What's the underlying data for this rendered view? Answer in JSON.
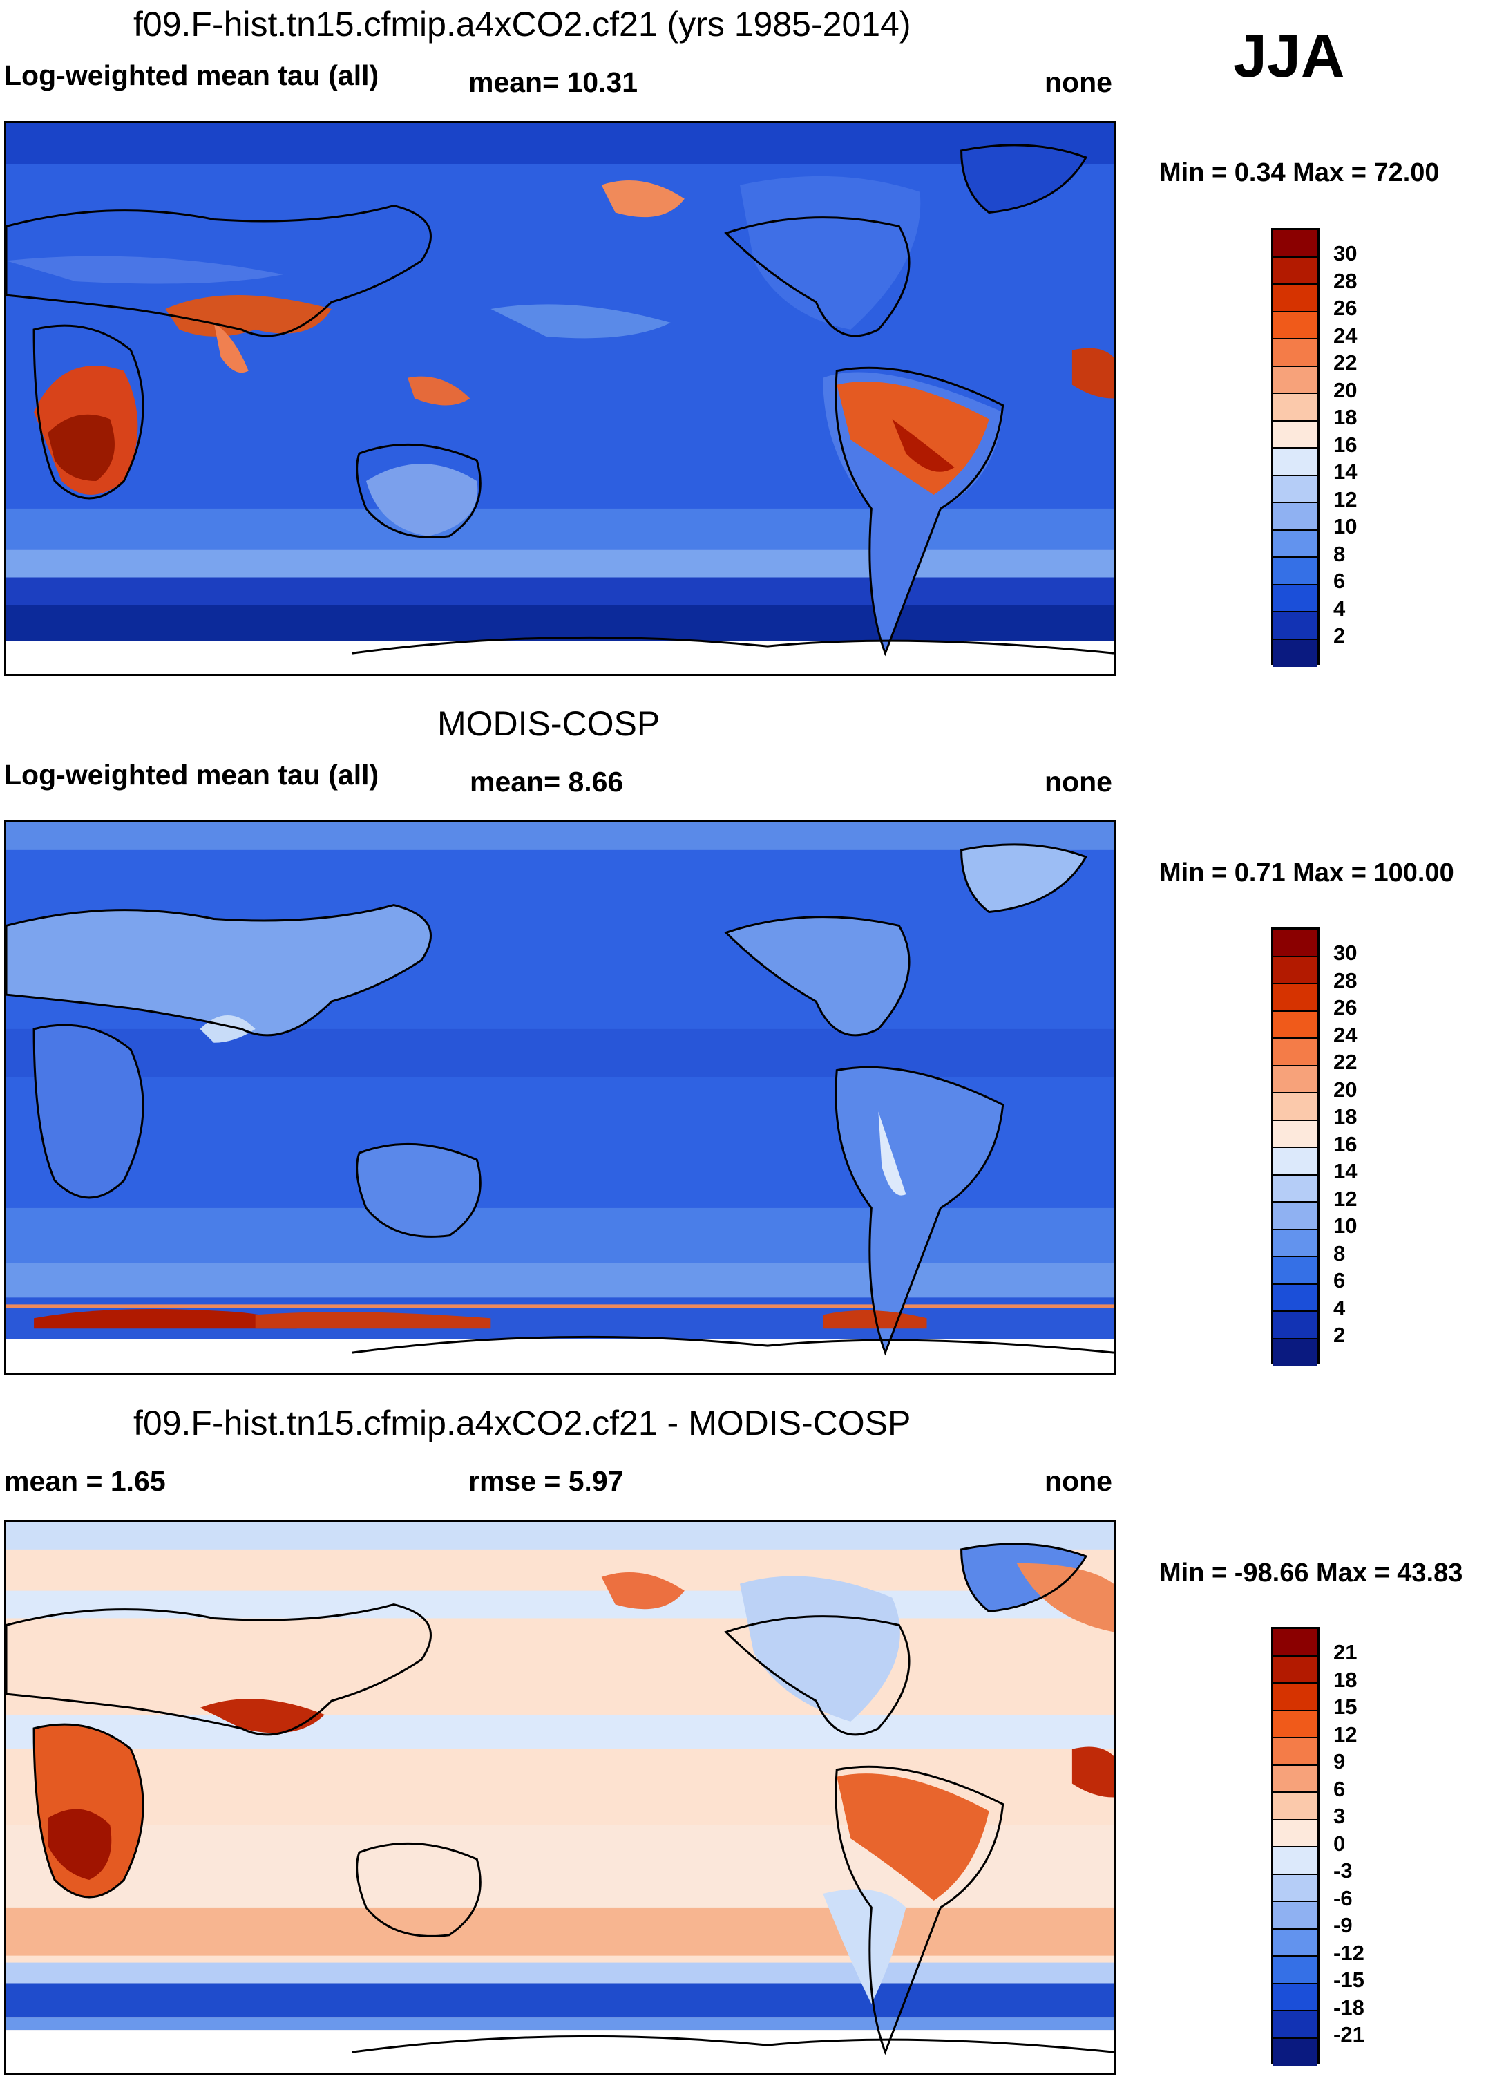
{
  "season": "JJA",
  "panels": [
    {
      "title": "f09.F-hist.tn15.cfmip.a4xCO2.cf21 (yrs 1985-2014)",
      "left_label": "Log-weighted mean tau (all)",
      "mid_label": "mean=  10.31",
      "right_label": "none",
      "minmax": "Min =   0.34 Max =  72.00",
      "cbar_labels": [
        "30",
        "28",
        "26",
        "24",
        "22",
        "20",
        "18",
        "16",
        "14",
        "12",
        "10",
        "8",
        "6",
        "4",
        "2"
      ],
      "cbar_colors": [
        "#8b0000",
        "#b31a00",
        "#d63300",
        "#f05a1a",
        "#f47c48",
        "#f7a27a",
        "#fbc9ab",
        "#fde9dc",
        "#dce9fb",
        "#b5cdf7",
        "#8fb1f2",
        "#6293ee",
        "#3570e6",
        "#1b4fd9",
        "#1233b4",
        "#0a1a80"
      ],
      "chart_data": {
        "type": "heatmap",
        "variable": "Log-weighted mean tau (all)",
        "mean": 10.31,
        "min": 0.34,
        "max": 72.0,
        "contour_levels": [
          2,
          4,
          6,
          8,
          10,
          12,
          14,
          16,
          18,
          20,
          22,
          24,
          26,
          28,
          30
        ]
      }
    },
    {
      "title": "MODIS-COSP",
      "left_label": "Log-weighted mean tau (all)",
      "mid_label": "mean=    8.66",
      "right_label": "none",
      "minmax": "Min =   0.71 Max = 100.00",
      "cbar_labels": [
        "30",
        "28",
        "26",
        "24",
        "22",
        "20",
        "18",
        "16",
        "14",
        "12",
        "10",
        "8",
        "6",
        "4",
        "2"
      ],
      "cbar_colors": [
        "#8b0000",
        "#b31a00",
        "#d63300",
        "#f05a1a",
        "#f47c48",
        "#f7a27a",
        "#fbc9ab",
        "#fde9dc",
        "#dce9fb",
        "#b5cdf7",
        "#8fb1f2",
        "#6293ee",
        "#3570e6",
        "#1b4fd9",
        "#1233b4",
        "#0a1a80"
      ],
      "chart_data": {
        "type": "heatmap",
        "variable": "Log-weighted mean tau (all)",
        "mean": 8.66,
        "min": 0.71,
        "max": 100.0,
        "contour_levels": [
          2,
          4,
          6,
          8,
          10,
          12,
          14,
          16,
          18,
          20,
          22,
          24,
          26,
          28,
          30
        ]
      }
    },
    {
      "title": "f09.F-hist.tn15.cfmip.a4xCO2.cf21 - MODIS-COSP",
      "left_label": "mean =    1.65",
      "mid_label": "rmse =    5.97",
      "right_label": "none",
      "minmax": "Min = -98.66 Max =  43.83",
      "cbar_labels": [
        "21",
        "18",
        "15",
        "12",
        "9",
        "6",
        "3",
        "0",
        "-3",
        "-6",
        "-9",
        "-12",
        "-15",
        "-18",
        "-21"
      ],
      "cbar_colors": [
        "#8b0000",
        "#b31a00",
        "#d63300",
        "#f05a1a",
        "#f47c48",
        "#f7a27a",
        "#fbc9ab",
        "#fde9dc",
        "#dce9fb",
        "#b5cdf7",
        "#8fb1f2",
        "#6293ee",
        "#3570e6",
        "#1b4fd9",
        "#1233b4",
        "#0a1a80"
      ],
      "chart_data": {
        "type": "heatmap",
        "variable": "difference",
        "mean": 1.65,
        "rmse": 5.97,
        "min": -98.66,
        "max": 43.83,
        "contour_levels": [
          -21,
          -18,
          -15,
          -12,
          -9,
          -6,
          -3,
          0,
          3,
          6,
          9,
          12,
          15,
          18,
          21
        ]
      }
    }
  ]
}
